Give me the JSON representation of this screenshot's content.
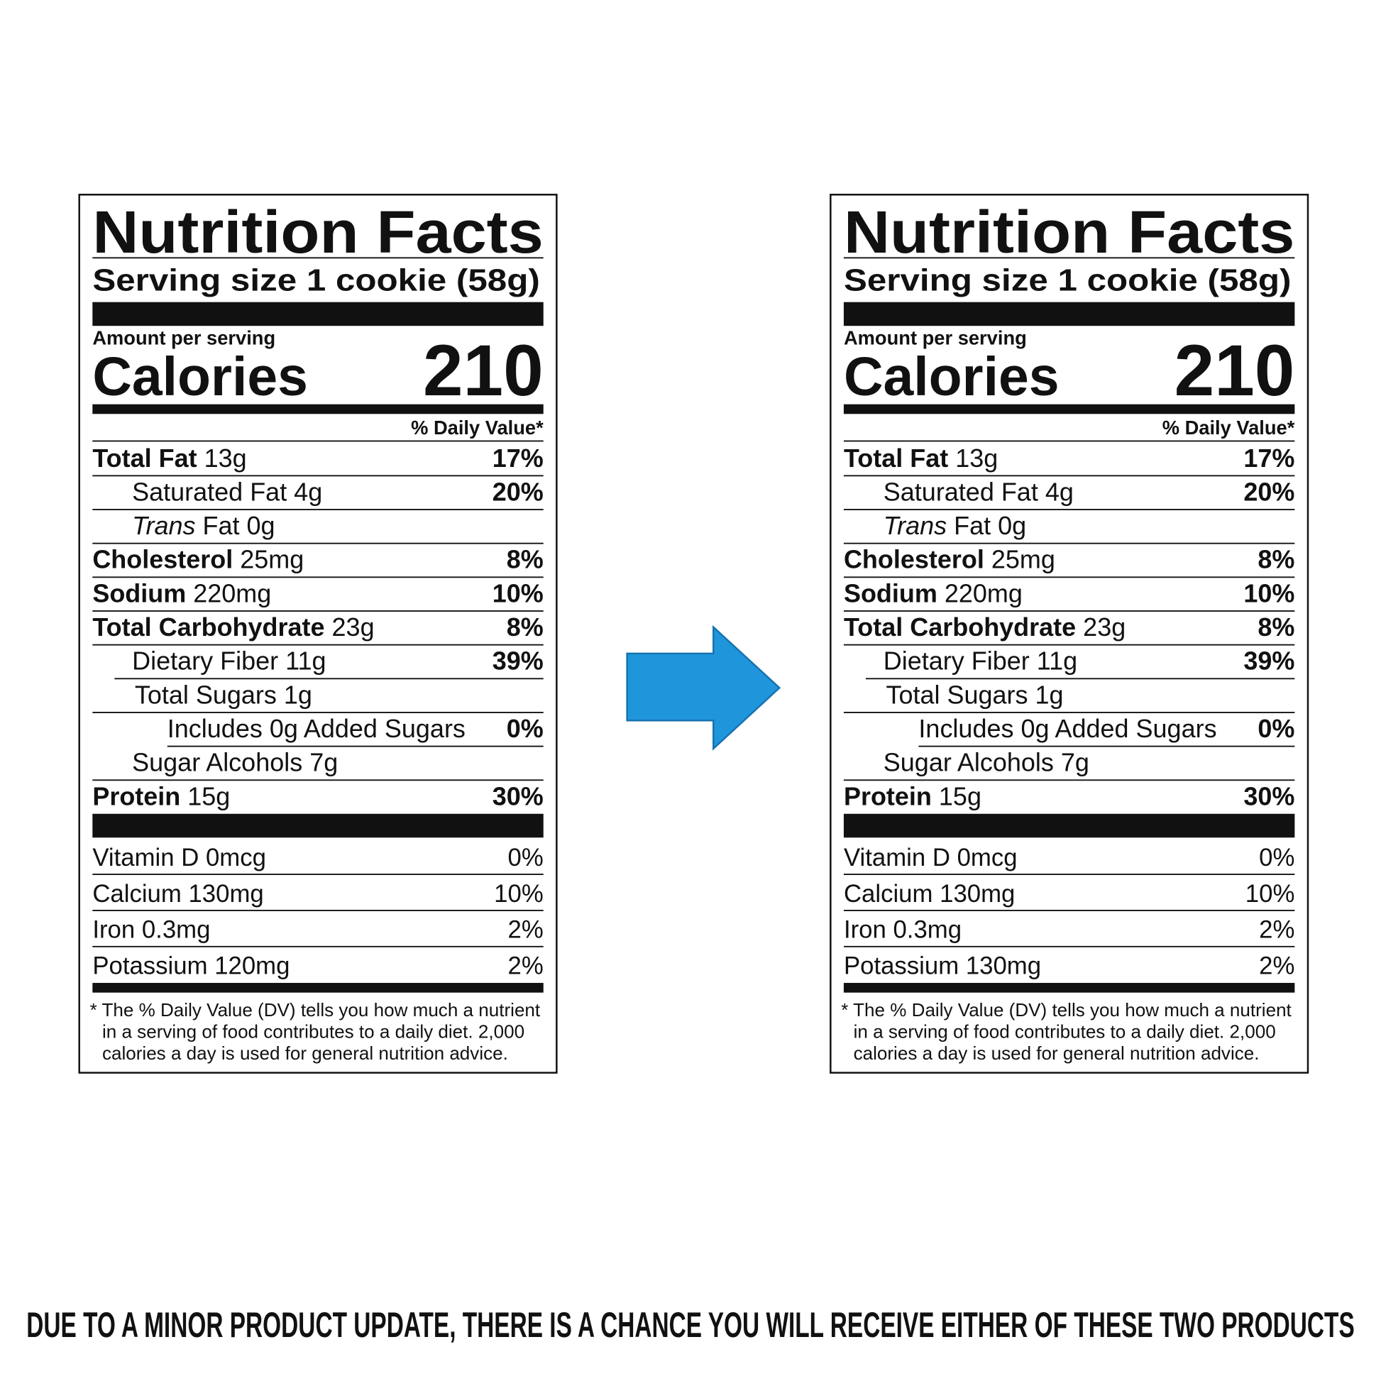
{
  "labels": [
    {
      "title": "Nutrition Facts",
      "serving_size": "Serving size 1 cookie (58g)",
      "amount_per_serving": "Amount per serving",
      "calories_label": "Calories",
      "calories": "210",
      "dv_header": "% Daily Value*",
      "rows": [
        {
          "label": "Total Fat",
          "amount": "13g",
          "dv": "17%"
        },
        {
          "amount": "Saturated Fat 4g",
          "dv": "20%"
        },
        {
          "label": "Trans",
          "amount": "Fat 0g"
        },
        {
          "label": "Cholesterol",
          "amount": "25mg",
          "dv": "8%"
        },
        {
          "label": "Sodium",
          "amount": "220mg",
          "dv": "10%"
        },
        {
          "label": "Total Carbohydrate",
          "amount": "23g",
          "dv": "8%"
        },
        {
          "amount": "Dietary Fiber 11g",
          "dv": "39%"
        },
        {
          "amount": "Total Sugars 1g"
        },
        {
          "amount": "Includes 0g Added Sugars",
          "dv": "0%"
        },
        {
          "amount": "Sugar Alcohols 7g"
        },
        {
          "label": "Protein",
          "amount": "15g",
          "dv": "30%"
        }
      ],
      "vitamins": [
        [
          "Vitamin D 0mcg",
          "0%"
        ],
        [
          "Calcium 130mg",
          "10%"
        ],
        [
          "Iron 0.3mg",
          "2%"
        ],
        [
          "Potassium 120mg",
          "2%"
        ]
      ],
      "footnote": [
        "* The % Daily Value (DV) tells you how much a nutrient",
        "in a serving of food contributes to a daily diet. 2,000",
        "calories a day is used for general nutrition advice."
      ]
    },
    {
      "title": "Nutrition Facts",
      "serving_size": "Serving size 1 cookie (58g)",
      "amount_per_serving": "Amount per serving",
      "calories_label": "Calories",
      "calories": "210",
      "dv_header": "% Daily Value*",
      "rows": [
        {
          "label": "Total Fat",
          "amount": "13g",
          "dv": "17%"
        },
        {
          "amount": "Saturated Fat 4g",
          "dv": "20%"
        },
        {
          "label": "Trans",
          "amount": "Fat 0g"
        },
        {
          "label": "Cholesterol",
          "amount": "25mg",
          "dv": "8%"
        },
        {
          "label": "Sodium",
          "amount": "220mg",
          "dv": "10%"
        },
        {
          "label": "Total Carbohydrate",
          "amount": "23g",
          "dv": "8%"
        },
        {
          "amount": "Dietary Fiber 11g",
          "dv": "39%"
        },
        {
          "amount": "Total Sugars 1g"
        },
        {
          "amount": "Includes 0g Added Sugars",
          "dv": "0%"
        },
        {
          "amount": "Sugar Alcohols 7g"
        },
        {
          "label": "Protein",
          "amount": "15g",
          "dv": "30%"
        }
      ],
      "vitamins": [
        [
          "Vitamin D 0mcg",
          "0%"
        ],
        [
          "Calcium 130mg",
          "10%"
        ],
        [
          "Iron 0.3mg",
          "2%"
        ],
        [
          "Potassium 130mg",
          "2%"
        ]
      ],
      "footnote": [
        "* The % Daily Value (DV) tells you how much a nutrient",
        "in a serving of food contributes to a daily diet. 2,000",
        "calories a day is used for general nutrition advice."
      ]
    }
  ],
  "banner": "DUE TO A MINOR PRODUCT UPDATE, THERE IS A CHANCE YOU WILL RECEIVE EITHER OF THESE TWO PRODUCTS"
}
